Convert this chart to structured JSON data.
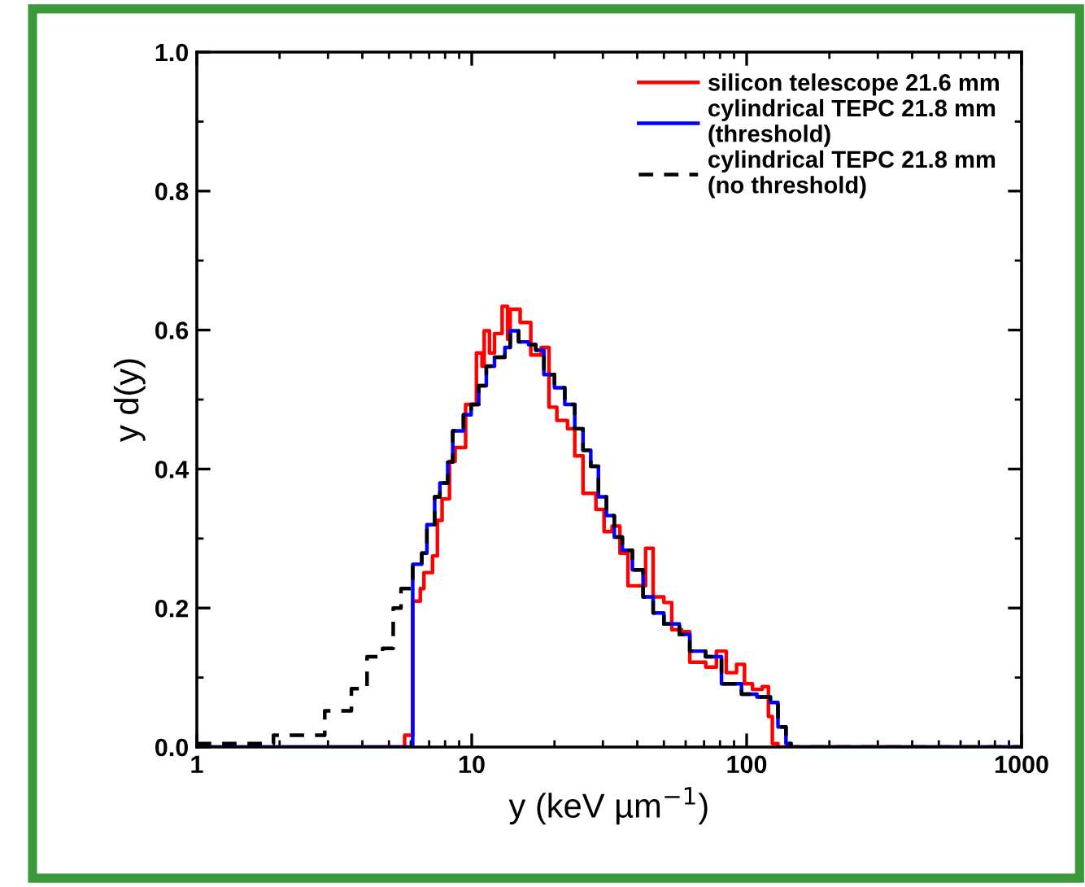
{
  "chart_data": {
    "type": "step",
    "xlabel": "y (keV µm$^{−1}$)",
    "ylabel": "y d(y)",
    "log": "x",
    "xlim": [
      1,
      1000
    ],
    "xticks": [
      1,
      10,
      100,
      1000
    ],
    "ylim": [
      0,
      1
    ],
    "yticks": [
      {
        "value": 0,
        "label": "0.0"
      },
      {
        "value": 0.2,
        "label": "0.2"
      },
      {
        "value": 0.4,
        "label": "0.4"
      },
      {
        "value": 0.6,
        "label": "0.6"
      },
      {
        "value": 0.8,
        "label": "0.8"
      },
      {
        "value": 1,
        "label": "1.0"
      }
    ],
    "legend": "top right",
    "grid": false,
    "series": [
      {
        "name": "silicon telescope 21.6 mm",
        "color": "#ff0000",
        "line_style": "solid",
        "x": [
          1,
          5.7,
          6.1,
          6.5,
          6.7,
          7.2,
          7.5,
          7.8,
          8.3,
          8.7,
          9.5,
          10.4,
          10.9,
          11.1,
          11.6,
          12.1,
          12.9,
          13.5,
          13.8,
          15.0,
          16.4,
          17.9,
          19.1,
          20.4,
          22.3,
          23.7,
          25.4,
          28.3,
          30.3,
          32.4,
          34.6,
          37.0,
          42.9,
          45.7,
          50,
          53.4,
          58,
          62.1,
          71,
          77.6,
          84.3,
          91.9,
          98.2,
          105,
          114,
          120,
          124,
          130,
          1000
        ],
        "values": [
          0,
          0.017,
          0.21,
          0.228,
          0.251,
          0.275,
          0.326,
          0.357,
          0.411,
          0.431,
          0.493,
          0.567,
          0.548,
          0.599,
          0.567,
          0.595,
          0.634,
          0.587,
          0.63,
          0.611,
          0.564,
          0.575,
          0.489,
          0.47,
          0.458,
          0.419,
          0.365,
          0.342,
          0.31,
          0.318,
          0.279,
          0.232,
          0.286,
          0.216,
          0.208,
          0.169,
          0.166,
          0.122,
          0.115,
          0.138,
          0.107,
          0.119,
          0.091,
          0.083,
          0.087,
          0.044,
          0.005,
          0,
          0
        ]
      },
      {
        "name": "cylindrical TEPC 21.8 mm\n(threshold)",
        "color": "#0000ff",
        "line_style": "solid",
        "x": [
          1,
          6.1,
          6.58,
          6.87,
          7.33,
          7.66,
          8.18,
          8.53,
          9.33,
          9.95,
          10.6,
          11.3,
          12.1,
          13.2,
          13.8,
          14.8,
          16.1,
          17.1,
          18.3,
          20.0,
          21.8,
          23.7,
          25.4,
          27.1,
          28.9,
          30.9,
          33.0,
          35.3,
          38.4,
          42.0,
          45.7,
          50,
          56.9,
          62.1,
          70.9,
          81,
          95.8,
          109,
          122,
          130,
          139,
          145,
          1000
        ],
        "values": [
          0,
          0.263,
          0.279,
          0.32,
          0.36,
          0.38,
          0.41,
          0.455,
          0.478,
          0.493,
          0.52,
          0.548,
          0.561,
          0.575,
          0.599,
          0.583,
          0.579,
          0.571,
          0.536,
          0.517,
          0.493,
          0.458,
          0.427,
          0.404,
          0.36,
          0.333,
          0.302,
          0.283,
          0.255,
          0.216,
          0.193,
          0.177,
          0.162,
          0.138,
          0.13,
          0.091,
          0.076,
          0.072,
          0.064,
          0.029,
          0.005,
          0,
          0
        ]
      },
      {
        "name": "cylindrical TEPC 21.8 mm\n(no threshold)",
        "color": "#000000",
        "line_style": "dashed",
        "x": [
          1,
          1.9,
          2.92,
          3.65,
          4.16,
          4.74,
          5.18,
          5.53,
          6.0,
          6.1,
          6.58,
          6.87,
          7.33,
          7.66,
          8.18,
          8.53,
          9.33,
          9.95,
          10.6,
          11.3,
          12.1,
          13.2,
          13.8,
          14.8,
          16.1,
          17.1,
          18.3,
          20.0,
          21.8,
          23.7,
          25.4,
          27.1,
          28.9,
          30.9,
          33.0,
          35.3,
          38.4,
          42.0,
          45.7,
          50,
          56.9,
          62.1,
          70.9,
          81,
          95.8,
          109,
          122,
          130,
          139,
          145,
          1000
        ],
        "values": [
          0.005,
          0.017,
          0.052,
          0.084,
          0.13,
          0.142,
          0.2,
          0.228,
          0.24,
          0.263,
          0.279,
          0.32,
          0.36,
          0.38,
          0.41,
          0.455,
          0.478,
          0.493,
          0.52,
          0.548,
          0.561,
          0.575,
          0.599,
          0.583,
          0.579,
          0.571,
          0.536,
          0.517,
          0.493,
          0.458,
          0.427,
          0.404,
          0.36,
          0.333,
          0.302,
          0.283,
          0.255,
          0.216,
          0.193,
          0.177,
          0.162,
          0.138,
          0.13,
          0.091,
          0.076,
          0.072,
          0.064,
          0.029,
          0.005,
          0,
          0
        ]
      }
    ]
  }
}
